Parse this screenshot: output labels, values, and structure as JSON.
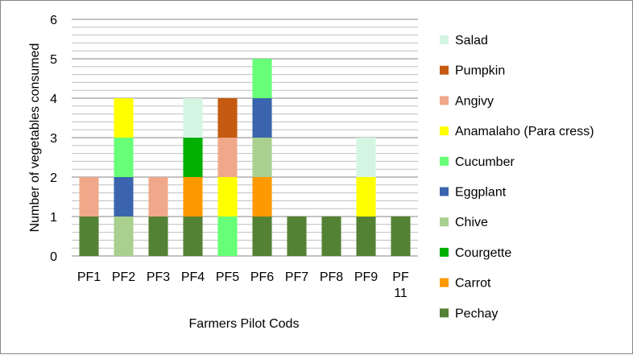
{
  "chart_data": {
    "type": "bar",
    "stacked": true,
    "title": "",
    "xlabel": "Farmers Pilot Cods",
    "ylabel": "Number of vegetables consumed",
    "ylim": [
      0,
      6
    ],
    "yticks": [
      0,
      1,
      2,
      3,
      4,
      5,
      6
    ],
    "grid": true,
    "legend_position": "right",
    "categories": [
      "PF1",
      "PF2",
      "PF3",
      "PF4",
      "PF5",
      "PF6",
      "PF7",
      "PF8",
      "PF9",
      "PF 11"
    ],
    "series": [
      {
        "name": "Pechay",
        "color": "#548235",
        "values": [
          1,
          0,
          1,
          1,
          0,
          1,
          1,
          1,
          1,
          1
        ]
      },
      {
        "name": "Carrot",
        "color": "#FF9900",
        "values": [
          0,
          0,
          0,
          1,
          0,
          1,
          0,
          0,
          0,
          0
        ]
      },
      {
        "name": "Courgette",
        "color": "#00B000",
        "values": [
          0,
          0,
          0,
          1,
          0,
          0,
          0,
          0,
          0,
          0
        ]
      },
      {
        "name": "Chive",
        "color": "#A9D08E",
        "values": [
          0,
          1,
          0,
          0,
          0,
          1,
          0,
          0,
          0,
          0
        ]
      },
      {
        "name": "Eggplant",
        "color": "#3A64AD",
        "values": [
          0,
          1,
          0,
          0,
          0,
          1,
          0,
          0,
          0,
          0
        ]
      },
      {
        "name": "Cucumber",
        "color": "#66FF77",
        "values": [
          0,
          1,
          0,
          0,
          1,
          1,
          0,
          0,
          0,
          0
        ]
      },
      {
        "name": "Anamalaho (Para cress)",
        "color": "#FFFF00",
        "values": [
          0,
          1,
          0,
          0,
          1,
          0,
          0,
          0,
          1,
          0
        ]
      },
      {
        "name": "Angivy",
        "color": "#F0A88A",
        "values": [
          1,
          0,
          1,
          0,
          1,
          0,
          0,
          0,
          0,
          0
        ]
      },
      {
        "name": "Pumpkin",
        "color": "#C55A11",
        "values": [
          0,
          0,
          0,
          0,
          1,
          0,
          0,
          0,
          0,
          0
        ]
      },
      {
        "name": "Salad",
        "color": "#D5F5E3",
        "values": [
          0,
          0,
          0,
          1,
          0,
          0,
          0,
          0,
          1,
          0
        ]
      }
    ]
  }
}
